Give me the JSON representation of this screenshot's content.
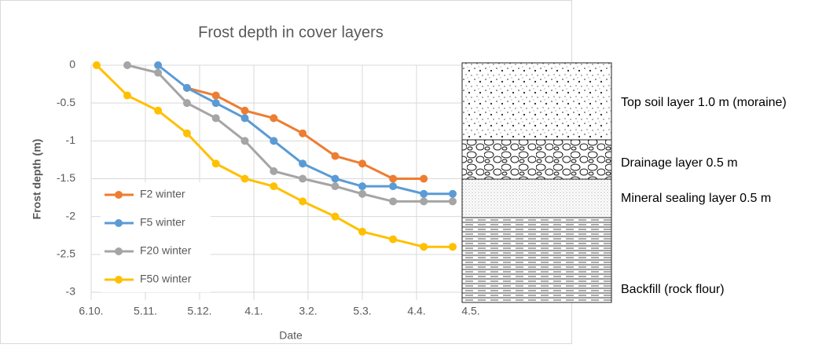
{
  "chart_data": {
    "type": "line",
    "title": "Frost depth in cover layers",
    "x_label": "Date",
    "y_label": "Frost depth (m)",
    "x": [
      3,
      20,
      37,
      53,
      69,
      85,
      101,
      117,
      135,
      150,
      167,
      184,
      200
    ],
    "xlim": [
      0,
      210
    ],
    "xticks": [
      {
        "value": 0,
        "label": "6.10."
      },
      {
        "value": 30,
        "label": "5.11."
      },
      {
        "value": 60,
        "label": "5.12."
      },
      {
        "value": 90,
        "label": "4.1."
      },
      {
        "value": 120,
        "label": "3.2."
      },
      {
        "value": 150,
        "label": "5.3."
      },
      {
        "value": 180,
        "label": "4.4."
      },
      {
        "value": 210,
        "label": "4.5."
      }
    ],
    "ylim": [
      -3,
      0
    ],
    "yticks": [
      0,
      -0.5,
      -1,
      -1.5,
      -2,
      -2.5,
      -3
    ],
    "grid": true,
    "legend": "left",
    "series": [
      {
        "name": "F2 winter",
        "color": "#ed7d31",
        "values": [
          null,
          null,
          null,
          -0.3,
          -0.4,
          -0.6,
          -0.7,
          -0.9,
          -1.2,
          -1.3,
          -1.5,
          -1.5,
          null
        ]
      },
      {
        "name": "F5 winter",
        "color": "#5b9bd5",
        "values": [
          null,
          null,
          0,
          -0.3,
          -0.5,
          -0.7,
          -1.0,
          -1.3,
          -1.5,
          -1.6,
          -1.6,
          -1.7,
          -1.7
        ]
      },
      {
        "name": "F20 winter",
        "color": "#a5a5a5",
        "values": [
          null,
          0,
          -0.1,
          -0.5,
          -0.7,
          -1.0,
          -1.4,
          -1.5,
          -1.6,
          -1.7,
          -1.8,
          -1.8,
          -1.8
        ]
      },
      {
        "name": "F50 winter",
        "color": "#ffc000",
        "values": [
          0,
          -0.4,
          -0.6,
          -0.9,
          -1.3,
          -1.5,
          -1.6,
          -1.8,
          -2.0,
          -2.2,
          -2.3,
          -2.4,
          -2.4
        ]
      }
    ]
  },
  "diagram": {
    "layers": [
      "Top soil layer 1.0 m (moraine)",
      "Drainage layer 0.5 m",
      "Mineral sealing layer 0.5 m",
      "Backfill (rock flour)"
    ]
  }
}
